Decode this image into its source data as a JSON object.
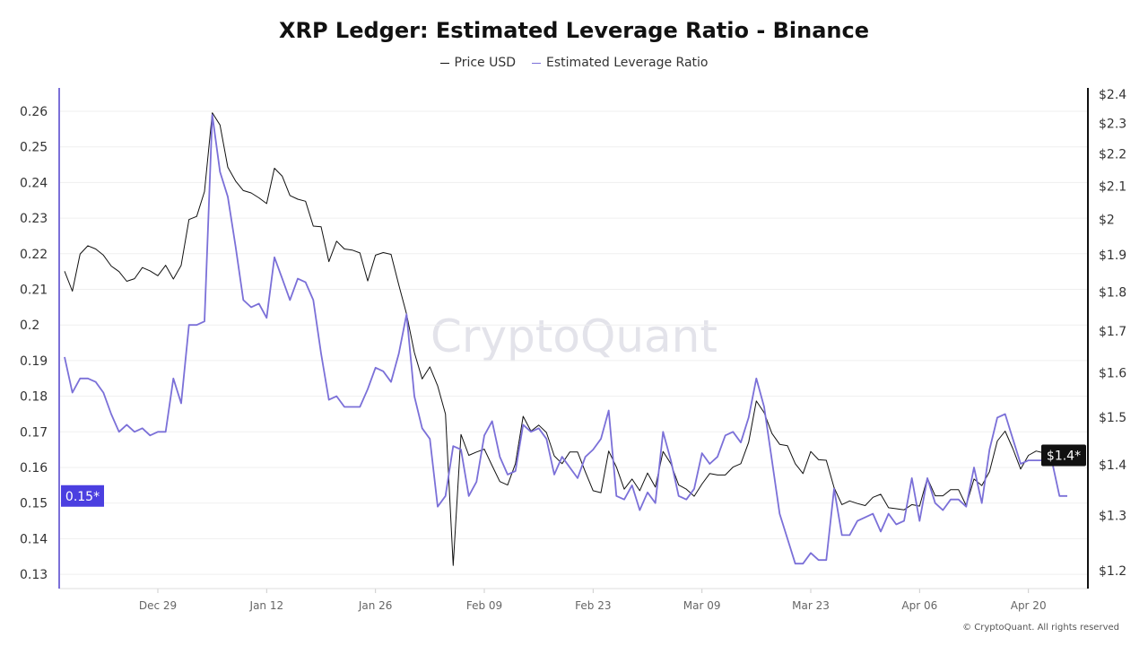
{
  "chart_data": {
    "type": "line",
    "title": "XRP Ledger: Estimated Leverage Ratio - Binance",
    "watermark": "CryptoQuant",
    "copyright": "© CryptoQuant. All rights reserved",
    "legend_placement": "top-center",
    "grid": true,
    "x": [
      "Dec 17",
      "Dec 18",
      "Dec 19",
      "Dec 20",
      "Dec 21",
      "Dec 22",
      "Dec 23",
      "Dec 24",
      "Dec 25",
      "Dec 26",
      "Dec 27",
      "Dec 28",
      "Dec 29",
      "Dec 30",
      "Dec 31",
      "Jan 01",
      "Jan 02",
      "Jan 03",
      "Jan 04",
      "Jan 05",
      "Jan 06",
      "Jan 07",
      "Jan 08",
      "Jan 09",
      "Jan 10",
      "Jan 11",
      "Jan 12",
      "Jan 13",
      "Jan 14",
      "Jan 15",
      "Jan 16",
      "Jan 17",
      "Jan 18",
      "Jan 19",
      "Jan 20",
      "Jan 21",
      "Jan 22",
      "Jan 23",
      "Jan 24",
      "Jan 25",
      "Jan 26",
      "Jan 27",
      "Jan 28",
      "Jan 29",
      "Jan 30",
      "Jan 31",
      "Feb 01",
      "Feb 02",
      "Feb 03",
      "Feb 04",
      "Feb 05",
      "Feb 06",
      "Feb 07",
      "Feb 08",
      "Feb 09",
      "Feb 10",
      "Feb 11",
      "Feb 12",
      "Feb 13",
      "Feb 14",
      "Feb 15",
      "Feb 16",
      "Feb 17",
      "Feb 18",
      "Feb 19",
      "Feb 20",
      "Feb 21",
      "Feb 22",
      "Feb 23",
      "Feb 24",
      "Feb 25",
      "Feb 26",
      "Feb 27",
      "Feb 28",
      "Mar 01",
      "Mar 02",
      "Mar 03",
      "Mar 04",
      "Mar 05",
      "Mar 06",
      "Mar 07",
      "Mar 08",
      "Mar 09",
      "Mar 10",
      "Mar 11",
      "Mar 12",
      "Mar 13",
      "Mar 14",
      "Mar 15",
      "Mar 16",
      "Mar 17",
      "Mar 18",
      "Mar 19",
      "Mar 20",
      "Mar 21",
      "Mar 22",
      "Mar 23",
      "Mar 24",
      "Mar 25",
      "Mar 26",
      "Mar 27",
      "Mar 28",
      "Mar 29",
      "Mar 30",
      "Mar 31",
      "Apr 01",
      "Apr 02",
      "Apr 03",
      "Apr 04",
      "Apr 05",
      "Apr 06",
      "Apr 07",
      "Apr 08",
      "Apr 09",
      "Apr 10",
      "Apr 11",
      "Apr 12",
      "Apr 13",
      "Apr 14",
      "Apr 15",
      "Apr 16",
      "Apr 17",
      "Apr 18",
      "Apr 19",
      "Apr 20",
      "Apr 21",
      "Apr 22",
      "Apr 23",
      "Apr 24",
      "Apr 25"
    ],
    "x_ticks": [
      "Dec 29",
      "Jan 12",
      "Jan 26",
      "Feb 09",
      "Feb 23",
      "Mar 09",
      "Mar 23",
      "Apr 06",
      "Apr 20"
    ],
    "y_left": {
      "ticks": [
        "0.13",
        "0.14",
        "0.15",
        "0.16",
        "0.17",
        "0.18",
        "0.19",
        "0.2",
        "0.21",
        "0.22",
        "0.23",
        "0.24",
        "0.25",
        "0.26"
      ],
      "range": [
        0.1215,
        0.266
      ],
      "scale": "linear",
      "last_value_label": "0.15*",
      "color": "#7b70d8"
    },
    "y_right": {
      "ticks": [
        "$1.2",
        "$1.3",
        "$1.4",
        "$1.5",
        "$1.6",
        "$1.7",
        "$1.8",
        "$1.9",
        "$2",
        "$2.1",
        "$2.2",
        "$2.3",
        "$2.4"
      ],
      "tick_values": [
        1.2,
        1.3,
        1.4,
        1.5,
        1.6,
        1.7,
        1.8,
        1.9,
        2.0,
        2.1,
        2.2,
        2.3,
        2.4
      ],
      "scale": "log",
      "last_value_label": "$1.4*",
      "color": "#111111"
    },
    "series": [
      {
        "name": "Price USD",
        "axis": "right",
        "color": "#111111",
        "values": [
          1.855,
          1.802,
          1.902,
          1.925,
          1.916,
          1.899,
          1.869,
          1.854,
          1.828,
          1.835,
          1.865,
          1.856,
          1.843,
          1.871,
          1.834,
          1.871,
          2.0,
          2.009,
          2.083,
          2.336,
          2.295,
          2.158,
          2.115,
          2.086,
          2.079,
          2.064,
          2.047,
          2.155,
          2.13,
          2.071,
          2.06,
          2.054,
          1.981,
          1.979,
          1.881,
          1.938,
          1.916,
          1.913,
          1.905,
          1.829,
          1.899,
          1.906,
          1.901,
          1.818,
          1.743,
          1.648,
          1.586,
          1.614,
          1.57,
          1.507,
          1.209,
          1.463,
          1.419,
          1.426,
          1.432,
          1.398,
          1.366,
          1.359,
          1.402,
          1.502,
          1.47,
          1.483,
          1.467,
          1.418,
          1.402,
          1.426,
          1.426,
          1.385,
          1.348,
          1.344,
          1.428,
          1.395,
          1.351,
          1.371,
          1.348,
          1.383,
          1.355,
          1.427,
          1.402,
          1.359,
          1.351,
          1.337,
          1.361,
          1.382,
          1.379,
          1.379,
          1.395,
          1.402,
          1.446,
          1.536,
          1.51,
          1.465,
          1.442,
          1.439,
          1.402,
          1.382,
          1.427,
          1.41,
          1.409,
          1.354,
          1.321,
          1.328,
          1.323,
          1.319,
          1.335,
          1.341,
          1.315,
          1.313,
          1.311,
          1.321,
          1.318,
          1.373,
          1.338,
          1.338,
          1.35,
          1.35,
          1.319,
          1.371,
          1.358,
          1.386,
          1.449,
          1.47,
          1.433,
          1.391,
          1.419,
          1.428,
          1.424,
          1.434,
          1.43,
          1.419
        ]
      },
      {
        "name": "Estimated Leverage Ratio",
        "axis": "left",
        "color": "#7b70d8",
        "values": [
          0.191,
          0.181,
          0.185,
          0.185,
          0.184,
          0.181,
          0.175,
          0.17,
          0.172,
          0.17,
          0.171,
          0.169,
          0.17,
          0.17,
          0.185,
          0.178,
          0.2,
          0.2,
          0.201,
          0.259,
          0.243,
          0.236,
          0.222,
          0.207,
          0.205,
          0.206,
          0.202,
          0.219,
          0.213,
          0.207,
          0.213,
          0.212,
          0.207,
          0.192,
          0.179,
          0.18,
          0.177,
          0.177,
          0.177,
          0.182,
          0.188,
          0.187,
          0.184,
          0.192,
          0.203,
          0.18,
          0.171,
          0.168,
          0.149,
          0.152,
          0.166,
          0.165,
          0.152,
          0.156,
          0.169,
          0.173,
          0.163,
          0.158,
          0.159,
          0.172,
          0.17,
          0.171,
          0.168,
          0.158,
          0.163,
          0.16,
          0.157,
          0.163,
          0.165,
          0.168,
          0.176,
          0.152,
          0.151,
          0.155,
          0.148,
          0.153,
          0.15,
          0.17,
          0.162,
          0.152,
          0.151,
          0.154,
          0.164,
          0.161,
          0.163,
          0.169,
          0.17,
          0.167,
          0.174,
          0.185,
          0.177,
          0.162,
          0.147,
          0.14,
          0.133,
          0.133,
          0.136,
          0.134,
          0.134,
          0.154,
          0.141,
          0.141,
          0.145,
          0.146,
          0.147,
          0.142,
          0.147,
          0.144,
          0.145,
          0.157,
          0.145,
          0.157,
          0.15,
          0.148,
          0.151,
          0.151,
          0.149,
          0.16,
          0.15,
          0.165,
          0.174,
          0.175,
          0.168,
          0.161,
          0.162,
          0.162,
          0.162,
          0.162,
          0.152,
          0.152
        ]
      }
    ]
  }
}
